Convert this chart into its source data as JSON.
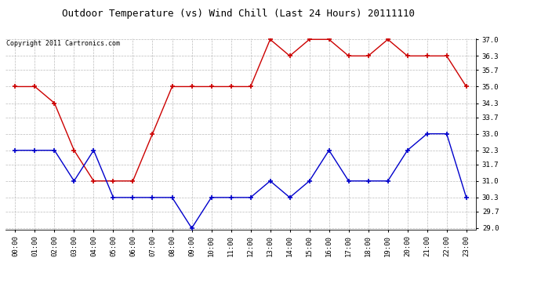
{
  "title": "Outdoor Temperature (vs) Wind Chill (Last 24 Hours) 20111110",
  "copyright": "Copyright 2011 Cartronics.com",
  "x_labels": [
    "00:00",
    "01:00",
    "02:00",
    "03:00",
    "04:00",
    "05:00",
    "06:00",
    "07:00",
    "08:00",
    "09:00",
    "10:00",
    "11:00",
    "12:00",
    "13:00",
    "14:00",
    "15:00",
    "16:00",
    "17:00",
    "18:00",
    "19:00",
    "20:00",
    "21:00",
    "22:00",
    "23:00"
  ],
  "red_data": [
    35.0,
    35.0,
    34.3,
    32.3,
    31.0,
    31.0,
    31.0,
    33.0,
    35.0,
    35.0,
    35.0,
    35.0,
    35.0,
    37.0,
    36.3,
    37.0,
    37.0,
    36.3,
    36.3,
    37.0,
    36.3,
    36.3,
    36.3,
    35.0
  ],
  "blue_data": [
    32.3,
    32.3,
    32.3,
    31.0,
    32.3,
    30.3,
    30.3,
    30.3,
    30.3,
    29.0,
    30.3,
    30.3,
    30.3,
    31.0,
    30.3,
    31.0,
    32.3,
    31.0,
    31.0,
    31.0,
    32.3,
    33.0,
    33.0,
    30.3
  ],
  "ylim": [
    29.0,
    37.0
  ],
  "y_ticks": [
    29.0,
    29.7,
    30.3,
    31.0,
    31.7,
    32.3,
    33.0,
    33.7,
    34.3,
    35.0,
    35.7,
    36.3,
    37.0
  ],
  "red_color": "#cc0000",
  "blue_color": "#0000cc",
  "bg_color": "#ffffff",
  "grid_color": "#bbbbbb",
  "title_fontsize": 9,
  "copyright_fontsize": 6,
  "tick_fontsize": 6.5,
  "ytick_fontsize": 6.5
}
